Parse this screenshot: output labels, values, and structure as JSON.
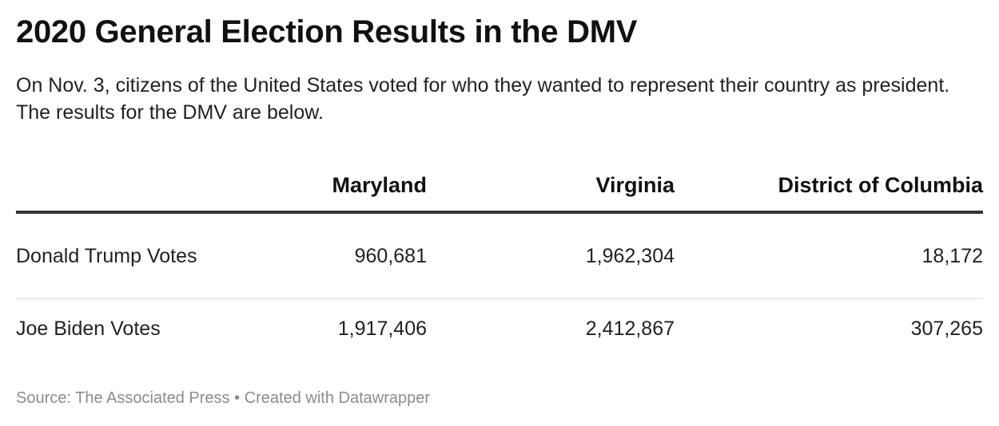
{
  "chart_data": {
    "type": "table",
    "title": "2020 General Election Results in the DMV",
    "subtitle": "On Nov. 3, citizens of the United States voted for who they wanted to represent their country as president. The results for the DMV are below.",
    "columns": [
      "",
      "Maryland",
      "Virginia",
      "District of Columbia"
    ],
    "rows": [
      {
        "label": "Donald Trump Votes",
        "values": [
          "960,681",
          "1,962,304",
          "18,172"
        ]
      },
      {
        "label": "Joe Biden Votes",
        "values": [
          "1,917,406",
          "2,412,867",
          "307,265"
        ]
      }
    ],
    "footer": {
      "source": "Source: The Associated Press",
      "separator": "•",
      "credit": "Created with Datawrapper"
    }
  }
}
